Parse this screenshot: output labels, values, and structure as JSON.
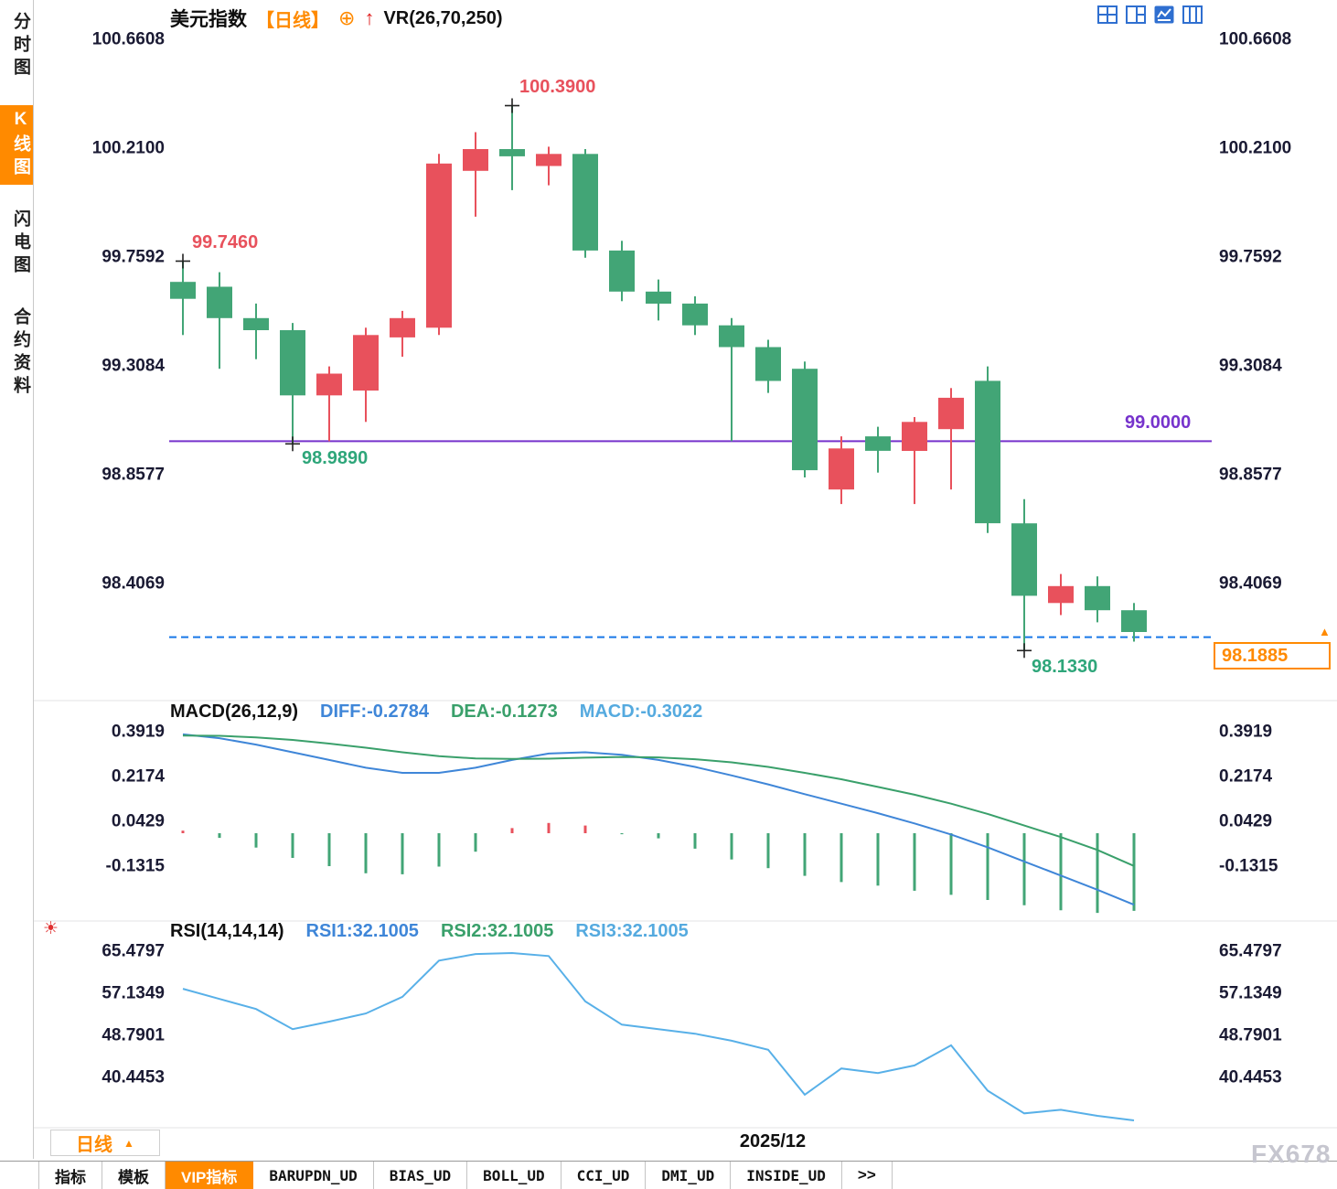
{
  "colors": {
    "up": "#e8515c",
    "down": "#42a576",
    "diff_line": "#3f86d8",
    "dea_line": "#3aa06b",
    "macd_value": "#55aadf",
    "rsi_line": "#58b0e8",
    "hline_purple": "#7633cc",
    "price_line_blue": "#1878e8",
    "accent_orange": "#ff8a00",
    "axis_text": "#1a1a33",
    "annotation_high": "#e8515c",
    "annotation_low": "#2ea67a",
    "icon_blue": "#2f6fd0"
  },
  "sidebar": {
    "items": [
      {
        "label": "分时图",
        "active": false
      },
      {
        "label": "K线图",
        "active": true
      },
      {
        "label": "闪电图",
        "active": false
      },
      {
        "label": "合约资料",
        "active": false
      }
    ]
  },
  "header": {
    "title": "美元指数",
    "period_tag": "【日线】",
    "add_icon": "⊕",
    "signal_icon": "↑",
    "indicator_label": "VR(26,70,250)"
  },
  "main_chart": {
    "y_ticks": [
      "100.6608",
      "100.2100",
      "99.7592",
      "99.3084",
      "98.8577",
      "98.4069"
    ],
    "hline_label": "99.0000",
    "price_box_label": "98.1885",
    "price_arrow": "▲",
    "annotations": [
      {
        "id": "left_high",
        "label": "99.7460",
        "candle": 0,
        "price": 99.746,
        "kind": "high"
      },
      {
        "id": "peak_high",
        "label": "100.3900",
        "candle": 9,
        "price": 100.39,
        "kind": "high"
      },
      {
        "id": "mid_low",
        "label": "98.9890",
        "candle": 3,
        "price": 98.989,
        "kind": "low"
      },
      {
        "id": "last_low",
        "label": "98.1330",
        "candle": 23,
        "price": 98.133,
        "kind": "low"
      }
    ]
  },
  "macd_panel": {
    "title": "MACD(26,12,9)",
    "diff_label": "DIFF:-0.2784",
    "dea_label": "DEA:-0.1273",
    "macd_label": "MACD:-0.3022",
    "y_ticks": [
      "0.3919",
      "0.2174",
      "0.0429",
      "-0.1315"
    ]
  },
  "rsi_panel": {
    "title": "RSI(14,14,14)",
    "rsi1_label": "RSI1:32.1005",
    "rsi2_label": "RSI2:32.1005",
    "rsi3_label": "RSI3:32.1005",
    "icon": "☀",
    "y_ticks": [
      "65.4797",
      "57.1349",
      "48.7901",
      "40.4453"
    ]
  },
  "footer": {
    "period_selector": "日线",
    "period_arrow": "▲",
    "date_label": "2025/12",
    "watermark": "FX678",
    "tabs": [
      {
        "label": "指标",
        "active": false,
        "mono": false
      },
      {
        "label": "模板",
        "active": false,
        "mono": false
      },
      {
        "label": "VIP指标",
        "active": true,
        "mono": false
      },
      {
        "label": "BARUPDN_UD",
        "active": false,
        "mono": true
      },
      {
        "label": "BIAS_UD",
        "active": false,
        "mono": true
      },
      {
        "label": "BOLL_UD",
        "active": false,
        "mono": true
      },
      {
        "label": "CCI_UD",
        "active": false,
        "mono": true
      },
      {
        "label": "DMI_UD",
        "active": false,
        "mono": true
      },
      {
        "label": "INSIDE_UD",
        "active": false,
        "mono": true
      },
      {
        "label": ">>",
        "active": false,
        "mono": false
      }
    ]
  },
  "chart_data": [
    {
      "type": "candlestick",
      "title": "美元指数 【日线】",
      "indicator": "VR(26,70,250)",
      "x_label": "2025/12",
      "ylim": [
        98.13,
        100.6608
      ],
      "y_ticks": [
        100.6608,
        100.21,
        99.7592,
        99.3084,
        98.8577,
        98.4069
      ],
      "support_line": 99.0,
      "last_price": 98.1885,
      "marked_high": 100.39,
      "marked_low": 98.133,
      "ohlc": [
        [
          99.66,
          99.746,
          99.44,
          99.59
        ],
        [
          99.64,
          99.7,
          99.3,
          99.51
        ],
        [
          99.51,
          99.57,
          99.34,
          99.46
        ],
        [
          99.46,
          99.49,
          98.989,
          99.19
        ],
        [
          99.19,
          99.31,
          99.0,
          99.28
        ],
        [
          99.21,
          99.47,
          99.08,
          99.44
        ],
        [
          99.43,
          99.54,
          99.35,
          99.51
        ],
        [
          99.47,
          100.19,
          99.44,
          100.15
        ],
        [
          100.12,
          100.28,
          99.93,
          100.21
        ],
        [
          100.21,
          100.39,
          100.04,
          100.18
        ],
        [
          100.14,
          100.22,
          100.06,
          100.19
        ],
        [
          100.19,
          100.21,
          99.76,
          99.79
        ],
        [
          99.79,
          99.83,
          99.58,
          99.62
        ],
        [
          99.62,
          99.67,
          99.5,
          99.57
        ],
        [
          99.57,
          99.6,
          99.44,
          99.48
        ],
        [
          99.48,
          99.51,
          99.0,
          99.39
        ],
        [
          99.39,
          99.42,
          99.2,
          99.25
        ],
        [
          99.3,
          99.33,
          98.85,
          98.88
        ],
        [
          98.8,
          99.02,
          98.74,
          98.97
        ],
        [
          99.02,
          99.06,
          98.87,
          98.96
        ],
        [
          98.96,
          99.1,
          98.74,
          99.08
        ],
        [
          99.05,
          99.22,
          98.8,
          99.18
        ],
        [
          99.25,
          99.31,
          98.62,
          98.66
        ],
        [
          98.66,
          98.76,
          98.133,
          98.36
        ],
        [
          98.33,
          98.45,
          98.28,
          98.4
        ],
        [
          98.4,
          98.44,
          98.25,
          98.3
        ],
        [
          98.3,
          98.33,
          98.17,
          98.21
        ]
      ]
    },
    {
      "type": "line",
      "title": "MACD(26,12,9)",
      "y_ticks": [
        0.3919,
        0.2174,
        0.0429,
        -0.1315
      ],
      "current": {
        "diff": -0.2784,
        "dea": -0.1273,
        "macd": -0.3022
      },
      "series": [
        {
          "name": "DIFF",
          "values": [
            0.385,
            0.37,
            0.345,
            0.315,
            0.285,
            0.255,
            0.235,
            0.235,
            0.255,
            0.285,
            0.31,
            0.315,
            0.305,
            0.285,
            0.258,
            0.225,
            0.19,
            0.152,
            0.115,
            0.078,
            0.038,
            -0.005,
            -0.055,
            -0.11,
            -0.165,
            -0.22,
            -0.2784
          ]
        },
        {
          "name": "DEA",
          "values": [
            0.38,
            0.379,
            0.373,
            0.363,
            0.349,
            0.333,
            0.315,
            0.3,
            0.291,
            0.289,
            0.29,
            0.294,
            0.297,
            0.295,
            0.288,
            0.276,
            0.258,
            0.235,
            0.21,
            0.18,
            0.15,
            0.115,
            0.075,
            0.03,
            -0.015,
            -0.065,
            -0.1273
          ]
        }
      ],
      "histogram": [
        0.01,
        -0.018,
        -0.056,
        -0.096,
        -0.128,
        -0.156,
        -0.16,
        -0.13,
        -0.072,
        0.02,
        0.04,
        0.03,
        -0.004,
        -0.02,
        -0.06,
        -0.102,
        -0.136,
        -0.166,
        -0.19,
        -0.204,
        -0.224,
        -0.24,
        -0.26,
        -0.28,
        -0.3,
        -0.31,
        -0.3022
      ]
    },
    {
      "type": "line",
      "title": "RSI(14,14,14)",
      "y_ticks": [
        65.4797,
        57.1349,
        48.7901,
        40.4453
      ],
      "current": {
        "rsi1": 32.1005,
        "rsi2": 32.1005,
        "rsi3": 32.1005
      },
      "note": "RSI1, RSI2 and RSI3 have identical parameters and overlap as one line",
      "values": [
        58.2,
        56.2,
        54.2,
        50.2,
        51.7,
        53.3,
        56.6,
        63.8,
        65.1,
        65.3,
        64.7,
        55.7,
        51.1,
        50.2,
        49.3,
        47.9,
        46.1,
        37.2,
        42.4,
        41.5,
        43.0,
        47.0,
        38.0,
        33.5,
        34.2,
        33.0,
        32.1
      ]
    }
  ]
}
